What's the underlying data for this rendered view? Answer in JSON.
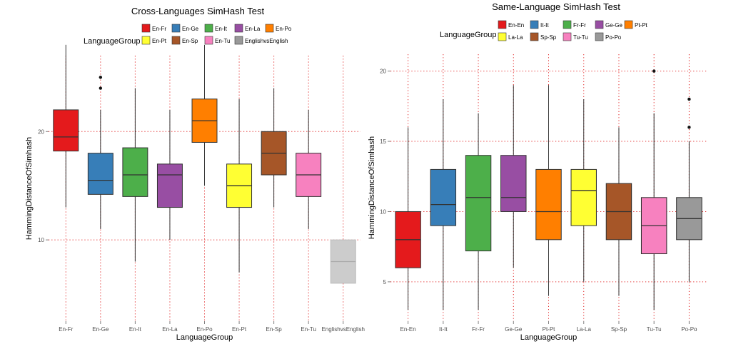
{
  "chart_data": [
    {
      "type": "boxplot",
      "title": "Cross-Languages SimHash Test",
      "xlabel": "LanguageGroup",
      "ylabel": "HammingDistanceOfSimhash",
      "legend_title": "LanguageGroup",
      "legend_position": "top",
      "ylim": [
        2.5,
        27
      ],
      "yticks": [
        10,
        20
      ],
      "grid": true,
      "categories": [
        "En-Fr",
        "En-Ge",
        "En-It",
        "En-La",
        "En-Po",
        "En-Pt",
        "En-Sp",
        "En-Tu",
        "EnglishvsEnglish"
      ],
      "colors": [
        "#e41a1c",
        "#377eb8",
        "#4daf4a",
        "#984ea3",
        "#ff7f00",
        "#ffff33",
        "#a65628",
        "#f781bf",
        "#999999"
      ],
      "series": [
        {
          "name": "En-Fr",
          "min": 13,
          "q1": 18.2,
          "median": 19.5,
          "q3": 22,
          "max": 28,
          "outliers": []
        },
        {
          "name": "En-Ge",
          "min": 11,
          "q1": 14.2,
          "median": 15.5,
          "q3": 18,
          "max": 22,
          "outliers": [
            24,
            25
          ]
        },
        {
          "name": "En-It",
          "min": 8,
          "q1": 14,
          "median": 16,
          "q3": 18.5,
          "max": 24,
          "outliers": []
        },
        {
          "name": "En-La",
          "min": 10,
          "q1": 13,
          "median": 16,
          "q3": 17,
          "max": 22,
          "outliers": []
        },
        {
          "name": "En-Po",
          "min": 15,
          "q1": 19,
          "median": 21,
          "q3": 23,
          "max": 28,
          "outliers": []
        },
        {
          "name": "En-Pt",
          "min": 7,
          "q1": 13,
          "median": 15,
          "q3": 17,
          "max": 23,
          "outliers": []
        },
        {
          "name": "En-Sp",
          "min": 13,
          "q1": 16,
          "median": 18,
          "q3": 20,
          "max": 24,
          "outliers": []
        },
        {
          "name": "En-Tu",
          "min": 11,
          "q1": 14,
          "median": 16,
          "q3": 18,
          "max": 22,
          "outliers": []
        },
        {
          "name": "EnglishvsEnglish",
          "min": 6,
          "q1": 6,
          "median": 8,
          "q3": 10,
          "max": 10,
          "outliers": []
        }
      ]
    },
    {
      "type": "boxplot",
      "title": "Same-Language SimHash Test",
      "xlabel": "LanguageGroup",
      "ylabel": "HammingDistanceOfSimhash",
      "legend_title": "LanguageGroup",
      "legend_position": "top",
      "ylim": [
        2.2,
        21.2
      ],
      "yticks": [
        5,
        10,
        15,
        20
      ],
      "grid": true,
      "categories": [
        "En-En",
        "It-It",
        "Fr-Fr",
        "Ge-Ge",
        "Pt-Pt",
        "La-La",
        "Sp-Sp",
        "Tu-Tu",
        "Po-Po"
      ],
      "colors": [
        "#e41a1c",
        "#377eb8",
        "#4daf4a",
        "#984ea3",
        "#ff7f00",
        "#ffff33",
        "#a65628",
        "#f781bf",
        "#999999"
      ],
      "series": [
        {
          "name": "En-En",
          "min": 3,
          "q1": 6,
          "median": 8,
          "q3": 10,
          "max": 16,
          "outliers": []
        },
        {
          "name": "It-It",
          "min": 3,
          "q1": 9,
          "median": 10.5,
          "q3": 13,
          "max": 18,
          "outliers": []
        },
        {
          "name": "Fr-Fr",
          "min": 3,
          "q1": 7.2,
          "median": 11,
          "q3": 14,
          "max": 17,
          "outliers": []
        },
        {
          "name": "Ge-Ge",
          "min": 6,
          "q1": 10,
          "median": 11,
          "q3": 14,
          "max": 19,
          "outliers": []
        },
        {
          "name": "Pt-Pt",
          "min": 4,
          "q1": 8,
          "median": 10,
          "q3": 13,
          "max": 19,
          "outliers": []
        },
        {
          "name": "La-La",
          "min": 5,
          "q1": 9,
          "median": 11.5,
          "q3": 13,
          "max": 18,
          "outliers": []
        },
        {
          "name": "Sp-Sp",
          "min": 4,
          "q1": 8,
          "median": 10,
          "q3": 12,
          "max": 16,
          "outliers": []
        },
        {
          "name": "Tu-Tu",
          "min": 3,
          "q1": 7,
          "median": 9,
          "q3": 11,
          "max": 17,
          "outliers": [
            20
          ]
        },
        {
          "name": "Po-Po",
          "min": 5,
          "q1": 8,
          "median": 9.5,
          "q3": 11,
          "max": 15,
          "outliers": [
            16,
            18
          ]
        }
      ]
    }
  ]
}
